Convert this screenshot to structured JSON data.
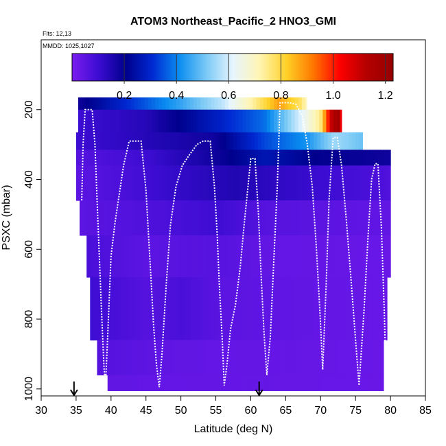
{
  "chart_data": {
    "type": "heatmap",
    "title": "ATOM3 Northeast_Pacific_2 HNO3_GMI",
    "annotations": [
      "Flts: 12,13",
      "MMDD: 1025,1027"
    ],
    "xlabel": "Latitude (deg N)",
    "ylabel": "PSXC (mbar)",
    "xlim": [
      30,
      85
    ],
    "ylim": [
      1020,
      0
    ],
    "y_reversed": true,
    "x_ticks": [
      30,
      35,
      40,
      45,
      50,
      55,
      60,
      65,
      70,
      75,
      80,
      85
    ],
    "y_ticks": [
      200,
      400,
      600,
      800,
      1000
    ],
    "colorbar": {
      "range": [
        0.0,
        1.23
      ],
      "ticks": [
        0.2,
        0.4,
        0.6,
        0.8,
        1.0,
        1.2
      ],
      "colors": [
        "#7a1cf0",
        "#3c0cd2",
        "#00008c",
        "#0028d2",
        "#0a8cf0",
        "#78c8f5",
        "#e6f5ff",
        "#fff5b4",
        "#ffd228",
        "#ff7800",
        "#ff0000",
        "#b40000",
        "#960000"
      ]
    },
    "series": [
      {
        "name": "HNO3 curtain (latitude, pressure, HNO3)",
        "rows": [
          {
            "p_top": 165,
            "p_bot": 200,
            "x0": 35.3,
            "x1": 68.0,
            "values": [
              {
                "x": 35.3,
                "v": 0.18
              },
              {
                "x": 43.0,
                "v": 0.32
              },
              {
                "x": 50.0,
                "v": 0.45
              },
              {
                "x": 56.0,
                "v": 0.58
              },
              {
                "x": 60.0,
                "v": 0.72
              },
              {
                "x": 64.0,
                "v": 0.88
              },
              {
                "x": 67.0,
                "v": 0.78
              },
              {
                "x": 68.0,
                "v": 0.7
              }
            ]
          },
          {
            "p_top": 200,
            "p_bot": 265,
            "x0": 35.3,
            "x1": 73.0,
            "values": [
              {
                "x": 35.3,
                "v": 0.1
              },
              {
                "x": 45.0,
                "v": 0.14
              },
              {
                "x": 55.0,
                "v": 0.28
              },
              {
                "x": 62.0,
                "v": 0.38
              },
              {
                "x": 67.0,
                "v": 0.6
              },
              {
                "x": 70.0,
                "v": 0.75
              },
              {
                "x": 71.5,
                "v": 1.1
              },
              {
                "x": 72.5,
                "v": 1.2
              },
              {
                "x": 73.0,
                "v": 1.0
              }
            ]
          },
          {
            "p_top": 265,
            "p_bot": 315,
            "x0": 35.0,
            "x1": 76.0,
            "values": [
              {
                "x": 35.0,
                "v": 0.1
              },
              {
                "x": 45.0,
                "v": 0.14
              },
              {
                "x": 55.0,
                "v": 0.18
              },
              {
                "x": 62.0,
                "v": 0.34
              },
              {
                "x": 68.0,
                "v": 0.42
              },
              {
                "x": 72.0,
                "v": 0.55
              },
              {
                "x": 76.0,
                "v": 0.5
              }
            ]
          },
          {
            "p_top": 315,
            "p_bot": 360,
            "x0": 35.0,
            "x1": 80.0,
            "values": [
              {
                "x": 35.0,
                "v": 0.06
              },
              {
                "x": 45.0,
                "v": 0.1
              },
              {
                "x": 55.0,
                "v": 0.18
              },
              {
                "x": 62.0,
                "v": 0.26
              },
              {
                "x": 70.0,
                "v": 0.2
              },
              {
                "x": 80.0,
                "v": 0.18
              }
            ]
          },
          {
            "p_top": 360,
            "p_bot": 460,
            "x0": 35.0,
            "x1": 80.0,
            "values": [
              {
                "x": 35.0,
                "v": 0.05
              },
              {
                "x": 42.0,
                "v": 0.08
              },
              {
                "x": 50.0,
                "v": 0.12
              },
              {
                "x": 58.0,
                "v": 0.15
              },
              {
                "x": 65.0,
                "v": 0.12
              },
              {
                "x": 80.0,
                "v": 0.07
              }
            ]
          },
          {
            "p_top": 460,
            "p_bot": 560,
            "x0": 35.5,
            "x1": 80.0,
            "values": [
              {
                "x": 35.5,
                "v": 0.05
              },
              {
                "x": 45.0,
                "v": 0.07
              },
              {
                "x": 55.0,
                "v": 0.1
              },
              {
                "x": 62.0,
                "v": 0.06
              },
              {
                "x": 80.0,
                "v": 0.04
              }
            ]
          },
          {
            "p_top": 560,
            "p_bot": 680,
            "x0": 36.5,
            "x1": 80.0,
            "values": [
              {
                "x": 36.5,
                "v": 0.08
              },
              {
                "x": 45.0,
                "v": 0.05
              },
              {
                "x": 55.0,
                "v": 0.06
              },
              {
                "x": 62.0,
                "v": 0.04
              },
              {
                "x": 80.0,
                "v": 0.03
              }
            ]
          },
          {
            "p_top": 680,
            "p_bot": 860,
            "x0": 37.0,
            "x1": 79.5,
            "values": [
              {
                "x": 37.0,
                "v": 0.1
              },
              {
                "x": 45.0,
                "v": 0.06
              },
              {
                "x": 50.0,
                "v": 0.08
              },
              {
                "x": 56.0,
                "v": 0.05
              },
              {
                "x": 79.5,
                "v": 0.03
              }
            ]
          },
          {
            "p_top": 860,
            "p_bot": 960,
            "x0": 38.0,
            "x1": 79.0,
            "values": [
              {
                "x": 38.0,
                "v": 0.06
              },
              {
                "x": 50.0,
                "v": 0.04
              },
              {
                "x": 79.0,
                "v": 0.03
              }
            ]
          },
          {
            "p_top": 960,
            "p_bot": 1005,
            "x0": 39.5,
            "x1": 79.0,
            "values": [
              {
                "x": 39.5,
                "v": 0.04
              },
              {
                "x": 79.0,
                "v": 0.03
              }
            ]
          }
        ]
      },
      {
        "name": "flight track (latitude, pressure)",
        "points": [
          [
            35.8,
            460
          ],
          [
            36.0,
            300
          ],
          [
            36.3,
            200
          ],
          [
            37.3,
            200
          ],
          [
            37.7,
            300
          ],
          [
            38.0,
            460
          ],
          [
            38.6,
            760
          ],
          [
            39.0,
            940
          ],
          [
            39.2,
            990
          ],
          [
            39.5,
            860
          ],
          [
            40.0,
            620
          ],
          [
            40.6,
            520
          ],
          [
            41.2,
            440
          ],
          [
            41.8,
            360
          ],
          [
            42.6,
            290
          ],
          [
            43.5,
            290
          ],
          [
            44.3,
            290
          ],
          [
            45.0,
            430
          ],
          [
            45.6,
            640
          ],
          [
            46.1,
            820
          ],
          [
            46.5,
            930
          ],
          [
            46.9,
            995
          ],
          [
            47.3,
            900
          ],
          [
            47.9,
            700
          ],
          [
            48.5,
            530
          ],
          [
            49.3,
            420
          ],
          [
            50.2,
            360
          ],
          [
            51.2,
            330
          ],
          [
            52.3,
            300
          ],
          [
            53.2,
            290
          ],
          [
            54.2,
            290
          ],
          [
            54.8,
            420
          ],
          [
            55.2,
            560
          ],
          [
            55.5,
            700
          ],
          [
            55.9,
            850
          ],
          [
            56.2,
            990
          ],
          [
            56.6,
            930
          ],
          [
            57.1,
            830
          ],
          [
            57.8,
            760
          ],
          [
            58.5,
            650
          ],
          [
            59.0,
            540
          ],
          [
            59.5,
            440
          ],
          [
            60.0,
            340
          ],
          [
            60.6,
            340
          ],
          [
            61.1,
            500
          ],
          [
            61.5,
            680
          ],
          [
            61.9,
            840
          ],
          [
            62.3,
            960
          ],
          [
            62.8,
            850
          ],
          [
            63.3,
            630
          ],
          [
            63.8,
            420
          ],
          [
            64.2,
            180
          ],
          [
            65.5,
            180
          ],
          [
            66.5,
            185
          ],
          [
            67.4,
            220
          ],
          [
            68.1,
            300
          ],
          [
            68.8,
            420
          ],
          [
            69.4,
            600
          ],
          [
            69.9,
            780
          ],
          [
            70.3,
            945
          ],
          [
            70.8,
            700
          ],
          [
            71.2,
            460
          ],
          [
            71.8,
            280
          ],
          [
            72.4,
            280
          ],
          [
            73.0,
            360
          ],
          [
            73.7,
            520
          ],
          [
            74.4,
            700
          ],
          [
            75.0,
            860
          ],
          [
            75.5,
            990
          ],
          [
            76.2,
            780
          ],
          [
            76.8,
            560
          ],
          [
            77.3,
            400
          ],
          [
            77.8,
            355
          ],
          [
            78.2,
            355
          ],
          [
            78.7,
            540
          ],
          [
            79.1,
            770
          ],
          [
            79.4,
            990
          ]
        ]
      }
    ],
    "markers": [
      {
        "x": 34.7,
        "label": "arrow"
      },
      {
        "x": 61.2,
        "label": "arrow"
      }
    ],
    "grid": false,
    "legend": "colorbar-top"
  }
}
